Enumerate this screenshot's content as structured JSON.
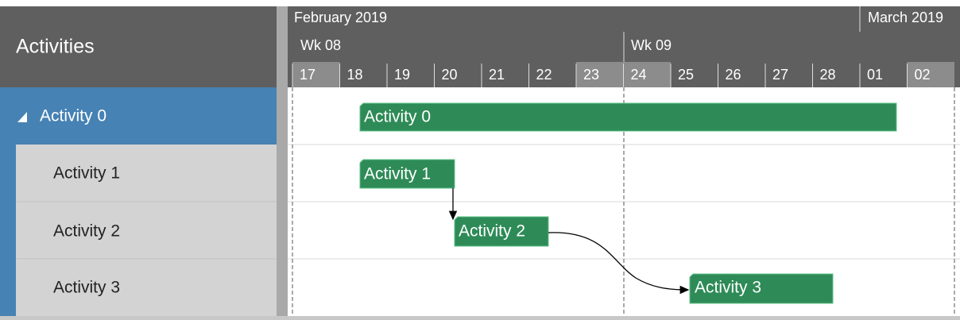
{
  "header": {
    "title": "Activities"
  },
  "timeline": {
    "months": [
      "February 2019",
      "March 2019"
    ],
    "weeks": [
      "Wk 08",
      "Wk 09"
    ],
    "days": [
      "17",
      "18",
      "19",
      "20",
      "21",
      "22",
      "23",
      "24",
      "25",
      "26",
      "27",
      "28",
      "01",
      "02"
    ]
  },
  "activities": [
    {
      "label": "Activity 0"
    },
    {
      "label": "Activity 1"
    },
    {
      "label": "Activity 2"
    },
    {
      "label": "Activity 3"
    }
  ]
}
